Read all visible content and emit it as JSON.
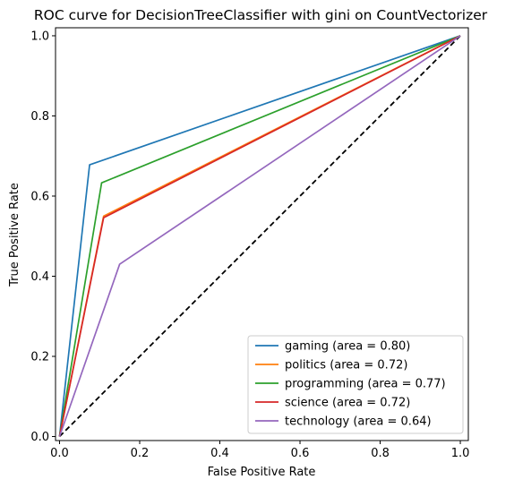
{
  "chart_data": {
    "type": "line",
    "title": "ROC curve for DecisionTreeClassifier with gini on CountVectorizer",
    "xlabel": "False Positive Rate",
    "ylabel": "True Positive Rate",
    "xlim": [
      -0.01,
      1.02
    ],
    "ylim": [
      -0.01,
      1.02
    ],
    "xticks": [
      "0.0",
      "0.2",
      "0.4",
      "0.6",
      "0.8",
      "1.0"
    ],
    "yticks": [
      "0.0",
      "0.2",
      "0.4",
      "0.6",
      "0.8",
      "1.0"
    ],
    "grid": false,
    "legend_position": "bottom-right",
    "series": [
      {
        "name": "gaming (area = 0.80)",
        "color": "#1f77b4",
        "x": [
          0,
          0.075,
          1
        ],
        "y": [
          0,
          0.678,
          1
        ]
      },
      {
        "name": "politics (area = 0.72)",
        "color": "#ff7f0e",
        "x": [
          0,
          0.11,
          1
        ],
        "y": [
          0,
          0.55,
          1
        ]
      },
      {
        "name": "programming (area = 0.77)",
        "color": "#2ca02c",
        "x": [
          0,
          0.105,
          1
        ],
        "y": [
          0,
          0.633,
          1
        ]
      },
      {
        "name": "science (area = 0.72)",
        "color": "#d62728",
        "x": [
          0,
          0.11,
          1
        ],
        "y": [
          0,
          0.546,
          1
        ]
      },
      {
        "name": "technology (area = 0.64)",
        "color": "#9467bd",
        "x": [
          0,
          0.15,
          1
        ],
        "y": [
          0,
          0.43,
          1
        ]
      }
    ],
    "reference_line": {
      "x": [
        0,
        1
      ],
      "y": [
        0,
        1
      ],
      "color": "#000000",
      "style": "dashed"
    }
  }
}
